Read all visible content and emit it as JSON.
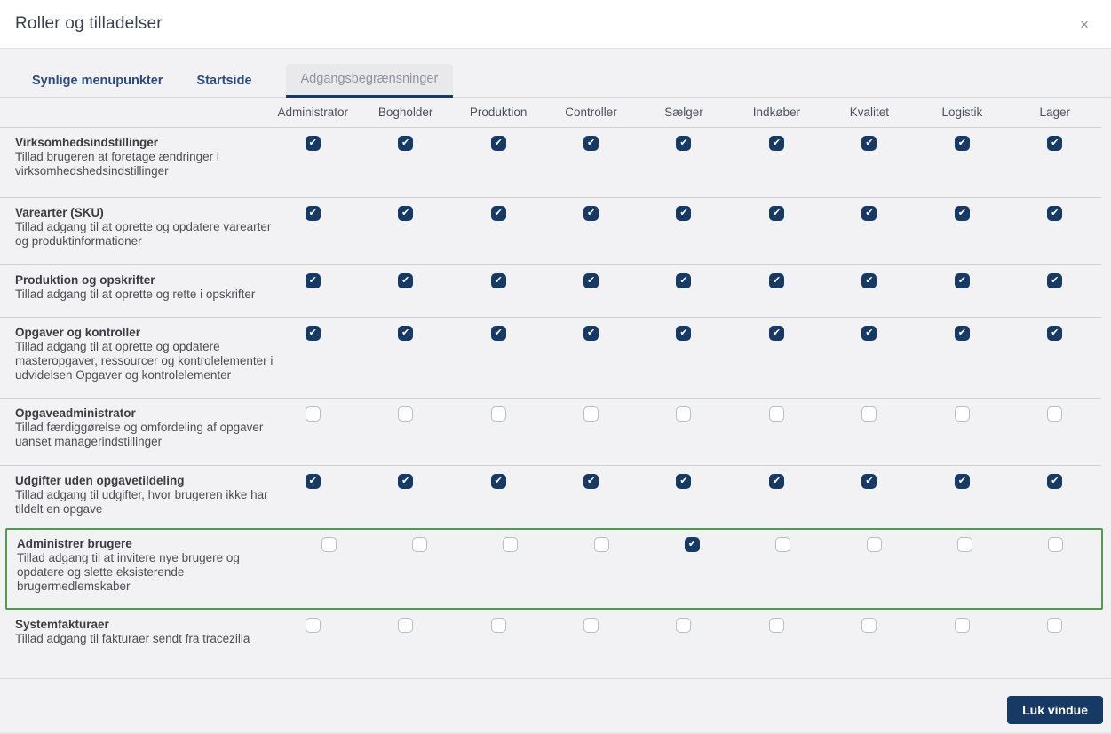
{
  "modal": {
    "title": "Roller og tilladelser",
    "close_label": "×"
  },
  "tabs": [
    {
      "label": "Synlige menupunkter",
      "active": false
    },
    {
      "label": "Startside",
      "active": false
    },
    {
      "label": "Adgangsbegrænsninger",
      "active": true
    }
  ],
  "table": {
    "columns": [
      "Administrator",
      "Bogholder",
      "Produktion",
      "Controller",
      "Sælger",
      "Indkøber",
      "Kvalitet",
      "Logistik",
      "Lager"
    ],
    "rows": [
      {
        "title": "Virksomhedsindstillinger",
        "description": "Tillad brugeren at foretage ændringer i virksomhedshedsindstillinger",
        "checks": [
          true,
          true,
          true,
          true,
          true,
          true,
          true,
          true,
          true
        ],
        "highlighted": false
      },
      {
        "title": "Varearter (SKU)",
        "description": "Tillad adgang til at oprette og opdatere varearter og produktinformationer",
        "checks": [
          true,
          true,
          true,
          true,
          true,
          true,
          true,
          true,
          true
        ],
        "highlighted": false
      },
      {
        "title": "Produktion og opskrifter",
        "description": "Tillad adgang til at oprette og rette i opskrifter",
        "checks": [
          true,
          true,
          true,
          true,
          true,
          true,
          true,
          true,
          true
        ],
        "highlighted": false
      },
      {
        "title": "Opgaver og kontroller",
        "description": "Tillad adgang til at oprette og opdatere masteropgaver, ressourcer og kontrolelementer i udvidelsen Opgaver og kontrolelementer",
        "checks": [
          true,
          true,
          true,
          true,
          true,
          true,
          true,
          true,
          true
        ],
        "highlighted": false
      },
      {
        "title": "Opgaveadministrator",
        "description": "Tillad færdiggørelse og omfordeling af opgaver uanset managerindstillinger",
        "checks": [
          false,
          false,
          false,
          false,
          false,
          false,
          false,
          false,
          false
        ],
        "highlighted": false
      },
      {
        "title": "Udgifter uden opgavetildeling",
        "description": "Tillad adgang til udgifter, hvor brugeren ikke har tildelt en opgave",
        "checks": [
          true,
          true,
          true,
          true,
          true,
          true,
          true,
          true,
          true
        ],
        "highlighted": false
      },
      {
        "title": "Administrer brugere",
        "description": "Tillad adgang til at invitere nye brugere og opdatere og slette eksisterende brugermedlemskaber",
        "checks": [
          false,
          false,
          false,
          false,
          true,
          false,
          false,
          false,
          false
        ],
        "highlighted": true
      },
      {
        "title": "Systemfakturaer",
        "description": "Tillad adgang til fakturaer sendt fra tracezilla",
        "checks": [
          false,
          false,
          false,
          false,
          false,
          false,
          false,
          false,
          false
        ],
        "highlighted": false
      }
    ]
  },
  "footer": {
    "close_button_label": "Luk vindue"
  },
  "colors": {
    "accent_navy": "#173a64",
    "highlight_green": "#4e9b4e",
    "body_background": "#f2f2f4",
    "active_tab_background": "#e9e9ec"
  }
}
